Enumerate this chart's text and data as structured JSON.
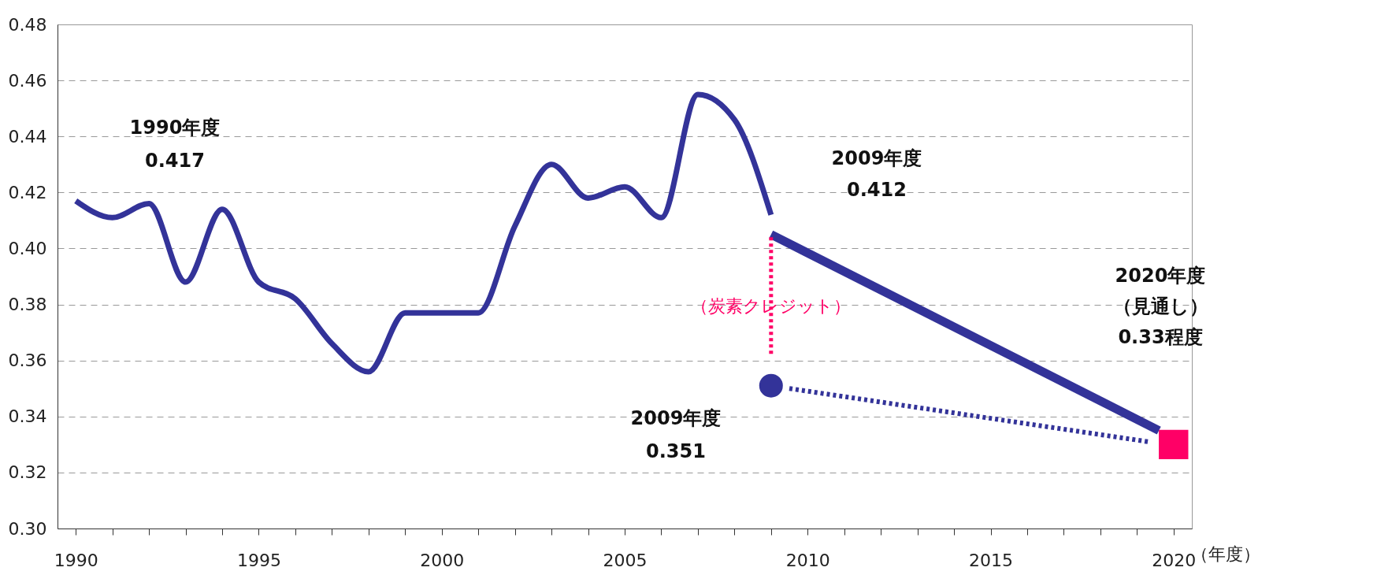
{
  "chart_data": {
    "type": "line",
    "xlabel": "（年度）",
    "xlim": [
      1989.5,
      2020.5
    ],
    "ylim": [
      0.3,
      0.48
    ],
    "xticks": [
      1990,
      {
        "value": 1991,
        "label": null
      },
      {
        "value": 1992,
        "label": null
      },
      {
        "value": 1993,
        "label": null
      },
      {
        "value": 1994,
        "label": null
      },
      1995,
      {
        "value": 1996,
        "label": null
      },
      {
        "value": 1997,
        "label": null
      },
      {
        "value": 1998,
        "label": null
      },
      {
        "value": 1999,
        "label": null
      },
      2000,
      {
        "value": 2001,
        "label": null
      },
      {
        "value": 2002,
        "label": null
      },
      {
        "value": 2003,
        "label": null
      },
      {
        "value": 2004,
        "label": null
      },
      2005,
      {
        "value": 2006,
        "label": null
      },
      {
        "value": 2007,
        "label": null
      },
      {
        "value": 2008,
        "label": null
      },
      {
        "value": 2009,
        "label": null
      },
      2010,
      {
        "value": 2011,
        "label": null
      },
      {
        "value": 2012,
        "label": null
      },
      {
        "value": 2013,
        "label": null
      },
      {
        "value": 2014,
        "label": null
      },
      2015,
      {
        "value": 2016,
        "label": null
      },
      {
        "value": 2017,
        "label": null
      },
      {
        "value": 2018,
        "label": null
      },
      {
        "value": 2019,
        "label": null
      },
      2020
    ],
    "yticks": [
      {
        "value": 0.3,
        "label": "0.30"
      },
      0.32,
      0.34,
      0.36,
      0.38,
      {
        "value": 0.4,
        "label": "0.40"
      },
      0.42,
      0.44,
      0.46,
      0.48
    ],
    "grid": "y",
    "series": [
      {
        "color": "#333399",
        "x": [
          1990,
          1991,
          1992,
          1993,
          1994,
          1995,
          1996,
          1997,
          1998,
          1999,
          2000,
          2001,
          2002,
          2003,
          2004,
          2005,
          2006,
          2007,
          2008,
          2009
        ],
        "values": [
          0.417,
          0.411,
          0.416,
          0.388,
          0.414,
          0.388,
          0.382,
          0.366,
          0.356,
          0.377,
          0.377,
          0.377,
          0.408,
          0.43,
          0.418,
          0.422,
          0.411,
          0.455,
          0.446,
          0.412
        ]
      },
      {
        "color": "#333399",
        "x": [
          2009,
          2019.6
        ],
        "values": [
          0.405,
          0.335
        ]
      },
      {
        "color": "#333399",
        "type": "line",
        "line_style": "dotted",
        "marker": "none",
        "x": [
          2009.5,
          2019.3
        ],
        "values": [
          0.35,
          0.331
        ]
      },
      {
        "color": "#333399",
        "type": "scatter",
        "marker": "circle",
        "x": [
          2009
        ],
        "values": [
          0.351
        ]
      },
      {
        "color": "#ff0066",
        "type": "scatter",
        "marker": "square",
        "x": [
          2020
        ],
        "values": [
          0.33
        ]
      }
    ],
    "ref_lines": [
      {
        "axis": "x",
        "value": 2009,
        "label": "（炭素クレジット）",
        "color": "#ff0066",
        "line_style": "dotted"
      }
    ],
    "annotations": [
      "1990年度",
      "0.417",
      "2009年度",
      "0.412",
      "2009年度",
      "0.351",
      "2020年度",
      "（見通し）",
      "0.33程度"
    ]
  }
}
